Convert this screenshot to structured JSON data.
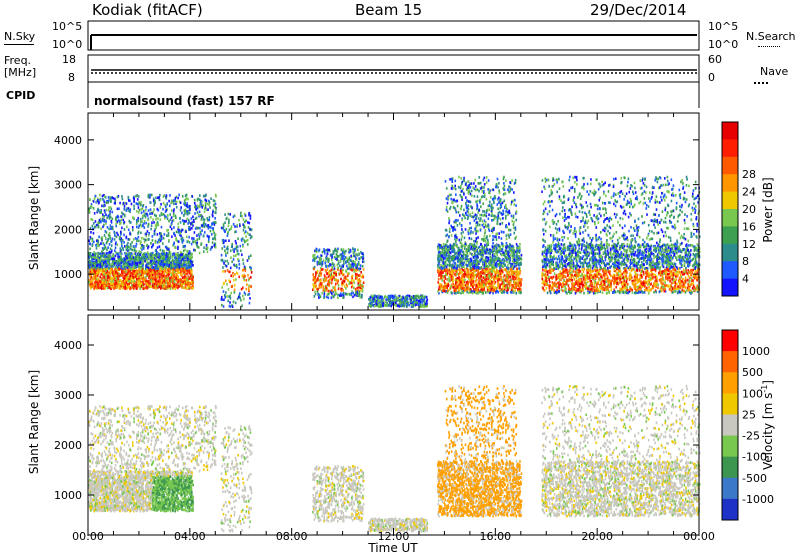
{
  "header": {
    "station": "Kodiak (fitACF)",
    "beam": "Beam 15",
    "date": "29/Dec/2014"
  },
  "summary_panels": {
    "nsky_label": "N.Sky",
    "nsearch_label": "N.Search",
    "nsky_ticks": [
      "10^5",
      "10^0"
    ],
    "nsearch_ticks": [
      "10^5",
      "10^0"
    ],
    "freq_label": "Freq.",
    "freq_unit": "[MHz]",
    "freq_ticks": [
      "18",
      "8"
    ],
    "nave_label": "Nave",
    "nave_ticks": [
      "60",
      "0"
    ],
    "cpid_label": "CPID",
    "cpid_value": "normalsound (fast) 157 RF"
  },
  "chart_data": [
    {
      "type": "heatmap",
      "name": "power",
      "ylabel": "Slant Range [km]",
      "xlabel": "",
      "x_range_hours": [
        0,
        24
      ],
      "ylim": [
        200,
        4600
      ],
      "yticks": [
        "1000",
        "2000",
        "3000",
        "4000"
      ],
      "colorbar": {
        "label": "Power [dB]",
        "ticks": [
          "4",
          "8",
          "12",
          "16",
          "20",
          "24",
          "28"
        ],
        "colors": [
          "#1414ff",
          "#1e5aff",
          "#2c8c8c",
          "#3ca050",
          "#78c850",
          "#f0c800",
          "#ff9600",
          "#ff5a00",
          "#ff1e00",
          "#e60000"
        ]
      }
    },
    {
      "type": "heatmap",
      "name": "velocity",
      "ylabel": "Slant Range [km]",
      "xlabel": "Time UT",
      "x_range_hours": [
        0,
        24
      ],
      "ylim": [
        200,
        4600
      ],
      "yticks": [
        "1000",
        "2000",
        "3000",
        "4000"
      ],
      "xticks": [
        "00:00",
        "04:00",
        "08:00",
        "12:00",
        "16:00",
        "20:00",
        "00:00"
      ],
      "colorbar": {
        "label": "Velocity [m s",
        "label_sup": "-1",
        "label_end": "]",
        "ticks": [
          "1000",
          "500",
          "100",
          "25",
          "-25",
          "-100",
          "-500",
          "-1000"
        ],
        "colors": [
          "#1e32c8",
          "#3c78c8",
          "#3c9650",
          "#78c850",
          "#c8c8c0",
          "#f0c800",
          "#ffa000",
          "#ff6400",
          "#ff0000"
        ]
      }
    }
  ]
}
